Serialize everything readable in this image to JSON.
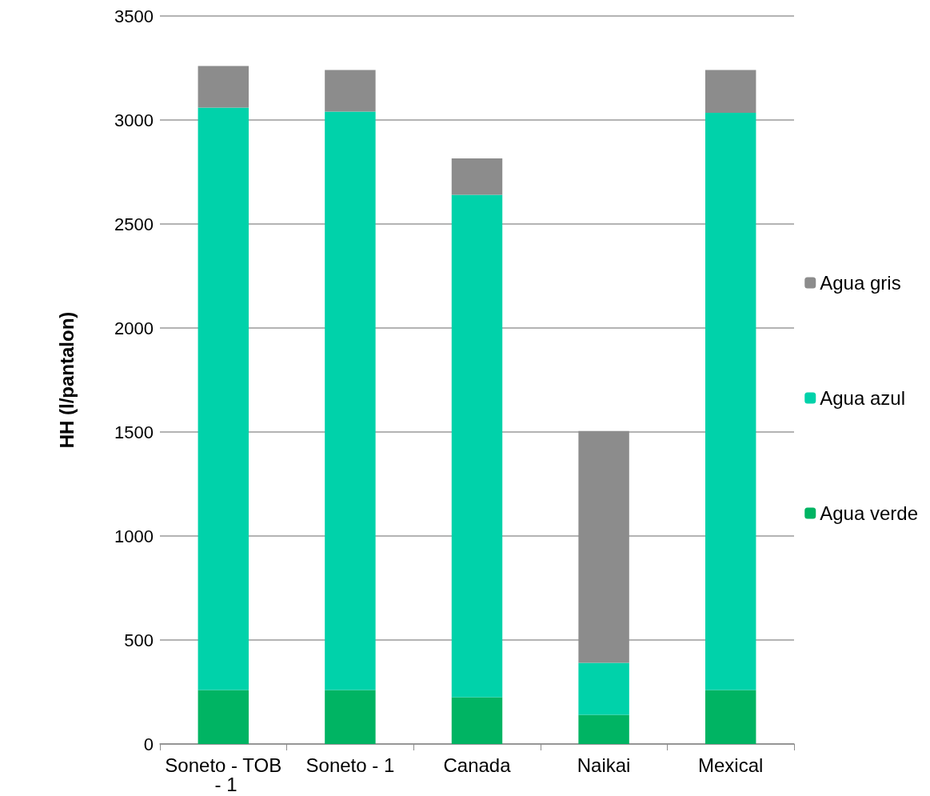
{
  "chart_data": {
    "type": "bar",
    "stacked": true,
    "ylabel": "HH (l/pantalon)",
    "categories": [
      "Soneto - TOB - 1",
      "Soneto - 1",
      "Canada",
      "Naikai",
      "Mexical"
    ],
    "series": [
      {
        "name": "Agua verde",
        "color": "#00b463",
        "values": [
          260,
          260,
          225,
          140,
          260
        ]
      },
      {
        "name": "Agua azul",
        "color": "#00d2aa",
        "values": [
          2800,
          2780,
          2415,
          250,
          2775
        ]
      },
      {
        "name": "Agua gris",
        "color": "#8c8c8c",
        "values": [
          200,
          200,
          175,
          1115,
          205
        ]
      }
    ],
    "ylim": [
      0,
      3500
    ],
    "yticks": [
      0,
      500,
      1000,
      1500,
      2000,
      2500,
      3000,
      3500
    ],
    "grid": "y",
    "legend": "right"
  }
}
